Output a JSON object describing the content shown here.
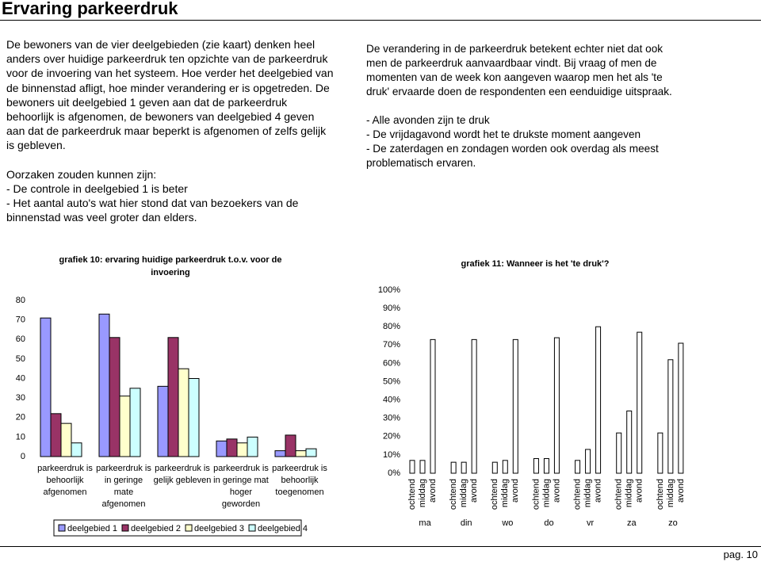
{
  "header": {
    "title": "Ervaring parkeerdruk"
  },
  "left": {
    "paragraphs": [
      "De bewoners van de vier deelgebieden (zie kaart) denken heel anders over huidige parkeerdruk ten opzichte van de parkeerdruk voor de invoering van het systeem. Hoe verder het deelgebied van de binnenstad afligt, hoe minder verandering er is opgetreden. De bewoners uit deelgebied 1 geven aan dat de parkeerdruk behoorlijk is afgenomen, de bewoners van deelgebied 4 geven aan dat de parkeerdruk maar beperkt is afgenomen of zelfs gelijk is gebleven.",
      "Oorzaken zouden kunnen zijn:",
      "- De controle in deelgebied 1 is beter",
      "- Het aantal auto's wat hier stond dat van bezoekers van de binnenstad was veel groter dan elders."
    ]
  },
  "right": {
    "paragraphs": [
      "De verandering in de parkeerdruk betekent echter niet dat ook men de parkeerdruk aanvaardbaar vindt. Bij vraag of men de momenten van de week kon aangeven waarop men het als 'te druk' ervaarde doen de respondenten een eenduidige uitspraak.",
      "- Alle avonden zijn te druk",
      "- De vrijdagavond wordt het te drukste moment aangeven",
      "- De zaterdagen en zondagen worden ook overdag als meest problematisch ervaren."
    ]
  },
  "chart_data": [
    {
      "type": "bar",
      "title": "grafiek 10: ervaring huidige parkeerdruk t.o.v. voor de invoering",
      "categories": [
        "parkeerdruk is behoorlijk afgenomen",
        "parkeerdruk is in geringe mate afgenomen",
        "parkeerdruk is gelijk gebleven",
        "parkeerdruk is in geringe mat hoger geworden",
        "parkeerdruk is behoorlijk toegenomen"
      ],
      "series": [
        {
          "name": "deelgebied 1",
          "color": "#9999ff",
          "values": [
            71,
            73,
            36,
            8,
            3
          ]
        },
        {
          "name": "deelgebied 2",
          "color": "#993366",
          "values": [
            22,
            61,
            61,
            9,
            11
          ]
        },
        {
          "name": "deelgebied 3",
          "color": "#ffffcc",
          "values": [
            17,
            31,
            45,
            7,
            3
          ]
        },
        {
          "name": "deelgebied 4",
          "color": "#ccffff",
          "values": [
            7,
            35,
            40,
            10,
            4
          ]
        }
      ],
      "ylim": [
        0,
        80
      ],
      "yticks": [
        0,
        10,
        20,
        30,
        40,
        50,
        60,
        70,
        80
      ],
      "legend": "bottom"
    },
    {
      "type": "bar",
      "title": "grafiek 11: Wanneer is het 'te druk'?",
      "categories": [
        "ma",
        "din",
        "wo",
        "do",
        "vr",
        "za",
        "zo"
      ],
      "series": [
        {
          "name": "ochtend",
          "color": "#ffffff",
          "values": [
            7,
            6,
            6,
            8,
            7,
            22,
            22
          ]
        },
        {
          "name": "middag",
          "color": "#ffffff",
          "values": [
            7,
            6,
            7,
            8,
            13,
            34,
            62
          ]
        },
        {
          "name": "avond",
          "color": "#ffffff",
          "values": [
            73,
            73,
            73,
            74,
            80,
            77,
            71
          ]
        }
      ],
      "ylim": [
        0,
        100
      ],
      "yticks": [
        {
          "value": 0,
          "label": "0%"
        },
        {
          "value": 10,
          "label": "10%"
        },
        {
          "value": 20,
          "label": "20%"
        },
        {
          "value": 30,
          "label": "30%"
        },
        {
          "value": 40,
          "label": "40%"
        },
        {
          "value": 50,
          "label": "50%"
        },
        {
          "value": 60,
          "label": "60%"
        },
        {
          "value": 70,
          "label": "70%"
        },
        {
          "value": 80,
          "label": "80%"
        },
        {
          "value": 90,
          "label": "90%"
        },
        {
          "value": 100,
          "label": "100%"
        }
      ]
    }
  ],
  "footer": {
    "page": "pag. 10"
  }
}
